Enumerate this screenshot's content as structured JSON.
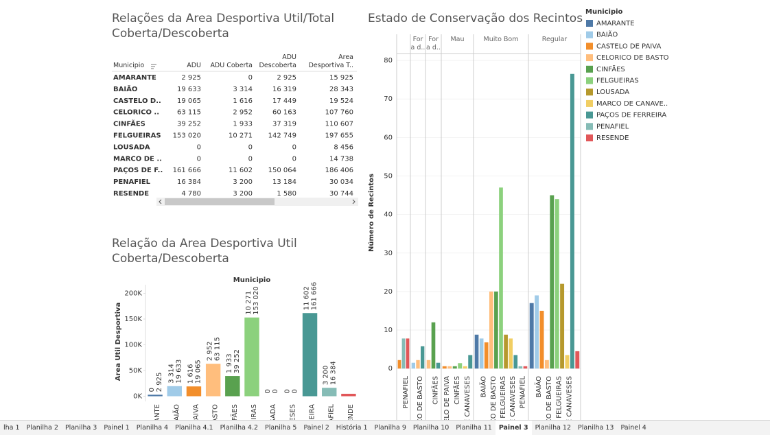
{
  "table": {
    "title": "Relações da Area Desportiva Util/Total Coberta/Descoberta",
    "headers": [
      "Municipio",
      "ADU",
      "ADU Coberta",
      "ADU Descoberta",
      "Area Desportiva T.."
    ],
    "rows": [
      [
        "AMARANTE",
        "2 925",
        "0",
        "2 925",
        "15 925"
      ],
      [
        "BAIÃO",
        "19 633",
        "3 314",
        "16 319",
        "28 343"
      ],
      [
        "CASTELO D..",
        "19 065",
        "1 616",
        "17 449",
        "19 524"
      ],
      [
        "CELORICO ..",
        "63 115",
        "2 952",
        "60 163",
        "107 760"
      ],
      [
        "CINFÃES",
        "39 252",
        "1 933",
        "37 319",
        "110 607"
      ],
      [
        "FELGUEIRAS",
        "153 020",
        "10 271",
        "142 749",
        "197 655"
      ],
      [
        "LOUSADA",
        "0",
        "0",
        "0",
        "8 456"
      ],
      [
        "MARCO DE ..",
        "0",
        "0",
        "0",
        "14 738"
      ],
      [
        "PAÇOS DE F..",
        "161 666",
        "11 602",
        "150 064",
        "186 406"
      ],
      [
        "PENAFIEL",
        "16 384",
        "3 200",
        "13 184",
        "30 034"
      ],
      [
        "RESENDE",
        "4 780",
        "3 200",
        "1 580",
        "30 744"
      ]
    ]
  },
  "chart_data": [
    {
      "type": "bar",
      "title": "Relação da Area Desportiva Util Coberta/Descoberta",
      "header": "Municipio",
      "y_label": "Area Util Desportiva",
      "categories": [
        "ANTE",
        "BAIÃO",
        "LO DE PAIVA",
        "CO DE BASTO",
        "IFÃES",
        "EIRAS",
        "SADA",
        "CO DE VESES",
        "OS DE REIRA",
        "AFIEL",
        "ENDE"
      ],
      "values": [
        2925,
        19633,
        19065,
        63115,
        39252,
        153020,
        0,
        0,
        161666,
        16384,
        4780
      ],
      "value_labels": [
        "2 925",
        "19 633",
        "19 065",
        "63 115",
        "39 252",
        "153 020",
        "0",
        "0",
        "161 666",
        "16 384",
        null
      ],
      "coberta_labels": [
        "0",
        "3 314",
        "1 616",
        "2 952",
        "1 933",
        "10 271",
        "0",
        "0",
        "11 602",
        "3 200",
        null
      ],
      "ylim": [
        -10000,
        230000
      ],
      "yticks": [
        {
          "value": 0,
          "label": "0K"
        },
        {
          "value": 50000,
          "label": "50K"
        },
        {
          "value": 100000,
          "label": "100K"
        },
        {
          "value": 150000,
          "label": "150K"
        },
        {
          "value": 200000,
          "label": "200K"
        }
      ],
      "grid": false
    },
    {
      "type": "grouped_bar",
      "title": "Estado de Conservação dos Recintos",
      "y_label": "Número de Recintos",
      "legend_title": "Municipio",
      "categories": [
        null,
        "For a d..",
        "For a d..",
        "Mau",
        "Muito Bom",
        "Regular"
      ],
      "ylim": [
        -1.4,
        81.8
      ],
      "yticks": [
        0,
        10,
        20,
        30,
        40,
        50,
        60,
        70,
        80
      ],
      "grid": true,
      "series": [
        {
          "name": "AMARANTE",
          "color": "#4e79a7",
          "values": [
            null,
            null,
            null,
            null,
            8.8,
            17
          ],
          "labels": [
            null,
            null,
            null,
            null,
            null,
            null
          ]
        },
        {
          "name": "BAIÃO",
          "color": "#a0cbe8",
          "values": [
            null,
            1.5,
            null,
            null,
            7.8,
            19
          ],
          "labels": [
            null,
            null,
            null,
            null,
            "BAIÃO",
            "BAIÃO"
          ]
        },
        {
          "name": "CASTELO DE PAIVA",
          "color": "#f28e2b",
          "values": [
            2.2,
            null,
            null,
            0.6,
            6.8,
            15
          ],
          "labels": [
            null,
            null,
            null,
            "TELO DE PAIVA",
            null,
            null
          ]
        },
        {
          "name": "CELORICO DE BASTO",
          "color": "#ffbe7d",
          "values": [
            null,
            2.2,
            2.2,
            0.6,
            20,
            2.2
          ],
          "labels": [
            null,
            "ICO DE BASTO",
            null,
            null,
            "ICO DE BASTO",
            "ICO DE BASTO"
          ]
        },
        {
          "name": "CINFÃES",
          "color": "#59a14f",
          "values": [
            null,
            null,
            12,
            0.6,
            20,
            45
          ],
          "labels": [
            null,
            null,
            "CINFÃES",
            "CINFÃES",
            null,
            null
          ]
        },
        {
          "name": "FELGUEIRAS",
          "color": "#8cd17d",
          "values": [
            null,
            null,
            null,
            1.4,
            47,
            44
          ],
          "labels": [
            null,
            null,
            null,
            null,
            "FELGUEIRAS",
            "FELGUEIRAS"
          ]
        },
        {
          "name": "LOUSADA",
          "color": "#b6992d",
          "values": [
            null,
            null,
            null,
            null,
            8.8,
            22
          ],
          "labels": [
            null,
            null,
            null,
            null,
            null,
            null
          ]
        },
        {
          "name": "MARCO DE CANAVE..",
          "color": "#f1ce63",
          "values": [
            null,
            null,
            null,
            0.6,
            7.8,
            3.5
          ],
          "labels": [
            null,
            null,
            null,
            "DE CANAVESES",
            "DE CANAVESES",
            "DE CANAVESES"
          ]
        },
        {
          "name": "PAÇOS DE FERREIRA",
          "color": "#499894",
          "values": [
            null,
            5.8,
            1.5,
            3.5,
            3.5,
            76.5
          ],
          "labels": [
            null,
            null,
            null,
            null,
            null,
            null
          ]
        },
        {
          "name": "PENAFIEL",
          "color": "#86bcb6",
          "values": [
            7.8,
            null,
            null,
            null,
            0.6,
            null
          ],
          "labels": [
            "PENAFIEL",
            null,
            null,
            null,
            "PENAFIEL",
            null
          ]
        },
        {
          "name": "RESENDE",
          "color": "#e15759",
          "values": [
            7.8,
            null,
            null,
            null,
            0.6,
            4.5
          ],
          "labels": [
            null,
            null,
            null,
            null,
            null,
            null
          ]
        }
      ]
    }
  ],
  "tabs": {
    "items": [
      "lha 1",
      "Planilha 2",
      "Planilha 3",
      "Painel 1",
      "Planilha 4",
      "Planilha 4.1",
      "Planilha 4.2",
      "Planilha 5",
      "Painel 2",
      "História 1",
      "Planilha 9",
      "Planilha 10",
      "Planilha 11",
      "Painel 3",
      "Planilha 12",
      "Planilha 13",
      "Painel 4"
    ],
    "active": "Painel 3"
  }
}
